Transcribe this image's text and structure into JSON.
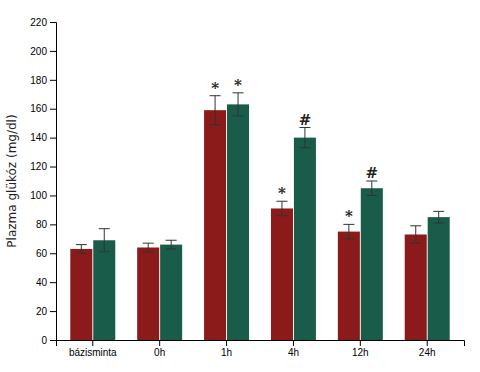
{
  "chart_data": {
    "type": "bar",
    "categories": [
      "bázisminta",
      "0h",
      "1h",
      "4h",
      "12h",
      "24h"
    ],
    "series": [
      {
        "color": "#8B1A1A",
        "values": [
          63,
          64,
          159,
          91,
          75,
          73
        ],
        "errors": [
          3,
          3,
          10,
          5,
          5,
          6
        ],
        "annotations": [
          null,
          null,
          "*",
          "*",
          "*",
          null
        ]
      },
      {
        "color": "#1a5c4a",
        "values": [
          69,
          66,
          163,
          140,
          105,
          85
        ],
        "errors": [
          8,
          3,
          8,
          7,
          5,
          4
        ],
        "annotations": [
          null,
          null,
          "*",
          "#",
          "#",
          null
        ]
      }
    ],
    "ylabel": "Plazma glükóz (mg/dl)",
    "ylim": [
      0,
      220
    ],
    "yticks": [
      0,
      20,
      40,
      60,
      80,
      100,
      120,
      140,
      160,
      180,
      200,
      220
    ],
    "grid": false
  }
}
